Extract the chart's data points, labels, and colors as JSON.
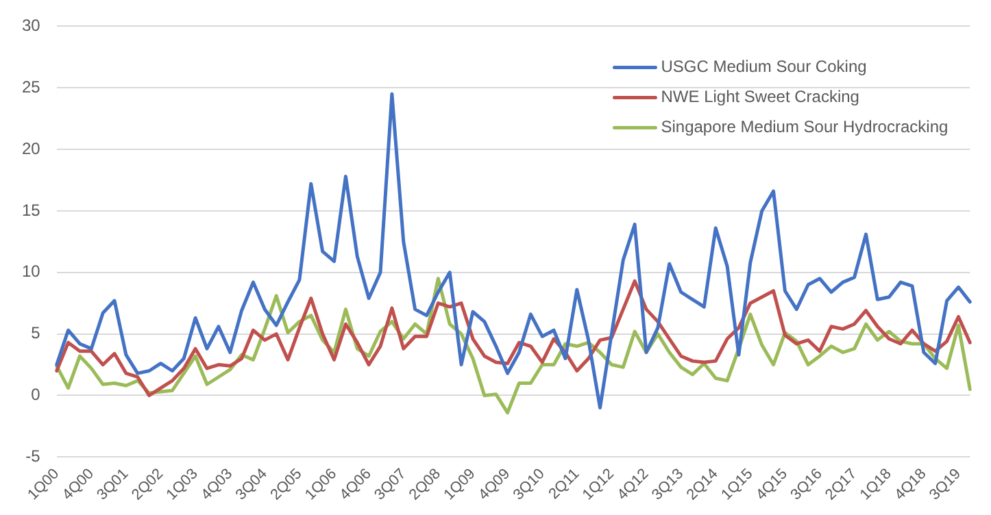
{
  "chart_data": {
    "type": "line",
    "categories": [
      "1Q00",
      null,
      null,
      "4Q00",
      null,
      null,
      "3Q01",
      null,
      null,
      "2Q02",
      null,
      null,
      "1Q03",
      null,
      null,
      "4Q03",
      null,
      null,
      "3Q04",
      null,
      null,
      "2Q05",
      null,
      null,
      "1Q06",
      null,
      null,
      "4Q06",
      null,
      null,
      "3Q07",
      null,
      null,
      "2Q08",
      null,
      null,
      "1Q09",
      null,
      null,
      "4Q09",
      null,
      null,
      "3Q10",
      null,
      null,
      "2Q11",
      null,
      null,
      "1Q12",
      null,
      null,
      "4Q12",
      null,
      null,
      "3Q13",
      null,
      null,
      "2Q14",
      null,
      null,
      "1Q15",
      null,
      null,
      "4Q15",
      null,
      null,
      "3Q16",
      null,
      null,
      "2Q17",
      null,
      null,
      "1Q18",
      null,
      null,
      "4Q18",
      null,
      null,
      "3Q19",
      null
    ],
    "series": [
      {
        "name": "USGC Medium Sour Coking",
        "color": "#4472c4",
        "values": [
          2.5,
          5.3,
          4.2,
          3.8,
          6.7,
          7.7,
          3.3,
          1.8,
          2.0,
          2.6,
          2.0,
          3.0,
          6.3,
          3.8,
          5.6,
          3.5,
          6.9,
          9.2,
          7.0,
          5.7,
          7.6,
          9.4,
          17.2,
          11.7,
          10.9,
          17.8,
          11.3,
          7.9,
          10.0,
          24.5,
          12.5,
          7.0,
          6.5,
          8.4,
          10.0,
          2.5,
          6.8,
          6.0,
          4.0,
          1.8,
          3.5,
          6.6,
          4.8,
          5.3,
          3.0,
          8.6,
          4.5,
          -1.0,
          5.0,
          11.0,
          13.9,
          3.5,
          5.5,
          10.7,
          8.4,
          7.8,
          7.2,
          13.6,
          10.5,
          3.3,
          10.8,
          15.0,
          16.6,
          8.5,
          7.0,
          9.0,
          9.5,
          8.4,
          9.2,
          9.6,
          13.1,
          7.8,
          8.0,
          9.2,
          8.9,
          3.5,
          2.6,
          7.7,
          8.8,
          7.6
        ]
      },
      {
        "name": "NWE Light Sweet Cracking",
        "color": "#c0504d",
        "values": [
          2.0,
          4.3,
          3.6,
          3.6,
          2.5,
          3.4,
          1.8,
          1.5,
          0.0,
          0.6,
          1.2,
          2.2,
          3.8,
          2.2,
          2.5,
          2.4,
          3.0,
          5.3,
          4.5,
          5.0,
          2.9,
          5.5,
          7.9,
          5.0,
          2.9,
          5.8,
          4.3,
          2.5,
          4.0,
          7.1,
          3.8,
          4.8,
          4.8,
          7.5,
          7.2,
          7.5,
          4.6,
          3.2,
          2.7,
          2.6,
          4.3,
          4.0,
          2.7,
          4.6,
          3.5,
          2.0,
          3.0,
          4.5,
          4.7,
          7.0,
          9.3,
          7.0,
          6.0,
          4.6,
          3.2,
          2.8,
          2.7,
          2.8,
          4.6,
          5.5,
          7.5,
          8.0,
          8.5,
          4.9,
          4.2,
          4.5,
          3.6,
          5.6,
          5.4,
          5.8,
          6.9,
          5.6,
          4.6,
          4.2,
          5.3,
          4.2,
          3.6,
          4.4,
          6.4,
          4.3
        ]
      },
      {
        "name": "Singapore Medium Sour Hydrocracking",
        "color": "#9bbb59",
        "values": [
          2.4,
          0.6,
          3.2,
          2.2,
          0.9,
          1.0,
          0.8,
          1.2,
          0.2,
          0.3,
          0.4,
          1.8,
          3.2,
          0.9,
          1.5,
          2.1,
          3.3,
          2.9,
          5.4,
          8.1,
          5.1,
          6.0,
          6.5,
          4.5,
          3.5,
          7.0,
          3.8,
          3.2,
          5.2,
          6.0,
          4.6,
          5.8,
          5.0,
          9.5,
          5.8,
          5.0,
          3.0,
          0.0,
          0.1,
          -1.4,
          1.0,
          1.0,
          2.5,
          2.5,
          4.2,
          4.0,
          4.3,
          3.5,
          2.5,
          2.3,
          5.2,
          3.5,
          5.0,
          3.5,
          2.3,
          1.7,
          2.6,
          1.4,
          1.2,
          3.8,
          6.6,
          4.1,
          2.5,
          5.1,
          4.4,
          2.5,
          3.2,
          4.0,
          3.5,
          3.8,
          5.8,
          4.5,
          5.2,
          4.4,
          4.2,
          4.2,
          3.0,
          2.2,
          5.7,
          0.5
        ]
      }
    ],
    "ylim": [
      -5,
      30
    ],
    "yticks": [
      -5,
      0,
      5,
      10,
      15,
      20,
      25,
      30
    ],
    "grid": "y",
    "legend": "top right",
    "marker": "none",
    "line_style": "solid"
  }
}
